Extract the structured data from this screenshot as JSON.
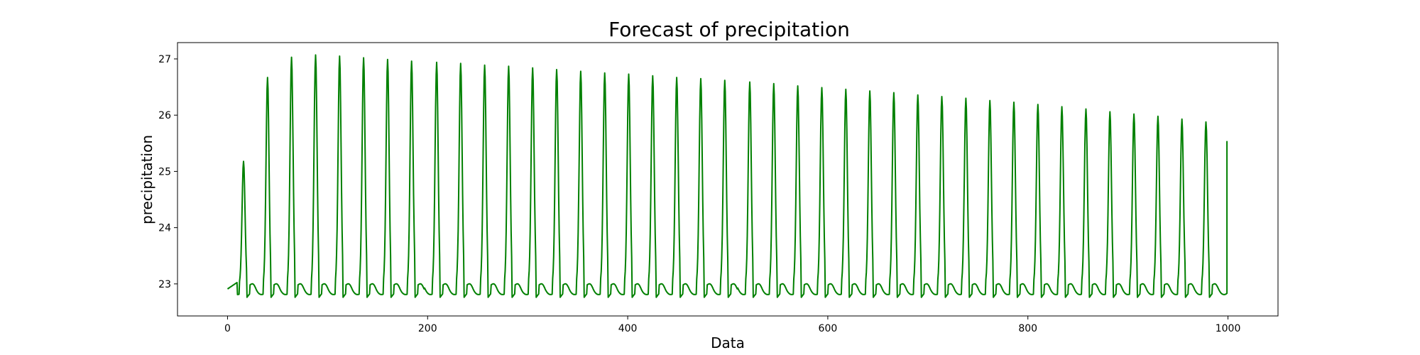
{
  "chart_data": {
    "type": "line",
    "title": "Forecast of precipitation",
    "xlabel": "Data",
    "ylabel": "precipitation",
    "xlim": [
      -50,
      1050
    ],
    "ylim": [
      22.43,
      27.29
    ],
    "xticks": [
      0,
      200,
      400,
      600,
      800,
      1000
    ],
    "yticks": [
      23,
      24,
      25,
      26,
      27
    ],
    "grid": false,
    "legend": "none",
    "series": [
      {
        "color": "#008000",
        "x_start": 0,
        "x_end": 999,
        "baseline": 22.99,
        "min_value": 22.75,
        "cycle_length": 24.1,
        "first_peak": {
          "x": 16,
          "y": 25.18
        },
        "peaks": [
          {
            "x": 40,
            "y": 26.67
          },
          {
            "x": 64,
            "y": 27.03
          },
          {
            "x": 88,
            "y": 27.07
          },
          {
            "x": 112,
            "y": 27.05
          },
          {
            "x": 136,
            "y": 27.02
          },
          {
            "x": 160,
            "y": 26.99
          },
          {
            "x": 184,
            "y": 26.96
          },
          {
            "x": 209,
            "y": 26.94
          },
          {
            "x": 233,
            "y": 26.92
          },
          {
            "x": 257,
            "y": 26.89
          },
          {
            "x": 281,
            "y": 26.87
          },
          {
            "x": 305,
            "y": 26.84
          },
          {
            "x": 329,
            "y": 26.81
          },
          {
            "x": 353,
            "y": 26.78
          },
          {
            "x": 377,
            "y": 26.75
          },
          {
            "x": 401,
            "y": 26.73
          },
          {
            "x": 425,
            "y": 26.7
          },
          {
            "x": 449,
            "y": 26.67
          },
          {
            "x": 473,
            "y": 26.65
          },
          {
            "x": 497,
            "y": 26.62
          },
          {
            "x": 522,
            "y": 26.59
          },
          {
            "x": 546,
            "y": 26.56
          },
          {
            "x": 570,
            "y": 26.52
          },
          {
            "x": 594,
            "y": 26.49
          },
          {
            "x": 618,
            "y": 26.46
          },
          {
            "x": 642,
            "y": 26.43
          },
          {
            "x": 666,
            "y": 26.4
          },
          {
            "x": 690,
            "y": 26.36
          },
          {
            "x": 714,
            "y": 26.33
          },
          {
            "x": 738,
            "y": 26.3
          },
          {
            "x": 762,
            "y": 26.26
          },
          {
            "x": 786,
            "y": 26.23
          },
          {
            "x": 810,
            "y": 26.19
          },
          {
            "x": 834,
            "y": 26.15
          },
          {
            "x": 858,
            "y": 26.11
          },
          {
            "x": 882,
            "y": 26.06
          },
          {
            "x": 906,
            "y": 26.02
          },
          {
            "x": 930,
            "y": 25.98
          },
          {
            "x": 954,
            "y": 25.93
          },
          {
            "x": 978,
            "y": 25.88
          }
        ],
        "last_point": {
          "x": 999,
          "y": 25.54
        }
      }
    ]
  }
}
